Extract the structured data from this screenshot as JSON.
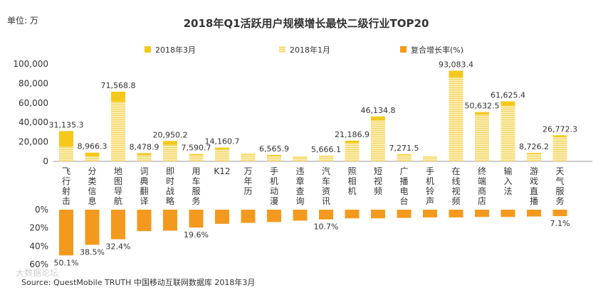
{
  "chart_data": {
    "type": "bar",
    "title": "2018年Q1活跃用户规模增长最快二级行业TOP20",
    "unit_label": "单位: 万",
    "legend": {
      "march": "2018年3月",
      "january": "2018年1月",
      "growth": "复合增长率(%)"
    },
    "y_ticks": [
      "100,000",
      "80,000",
      "60,000",
      "40,000",
      "20,000",
      "0"
    ],
    "growth_ticks": [
      "0%",
      "20%",
      "40%",
      "60%"
    ],
    "ylim": [
      0,
      100000
    ],
    "growth_lim": [
      0,
      60
    ],
    "categories": [
      "飞行射击",
      "分类信息",
      "地图导航",
      "词典翻译",
      "即时战略",
      "用车服务",
      "K12",
      "万年历",
      "手机动漫",
      "违章查询",
      "汽车资讯",
      "照相机",
      "短视频",
      "广播电台",
      "手机铃声",
      "在线视频",
      "终端商店",
      "输入法",
      "游戏直播",
      "天气服务"
    ],
    "series": [
      {
        "name": "2018年3月",
        "values": [
          31135.3,
          8966.3,
          71568.8,
          8478.9,
          20950.2,
          7590.7,
          14160.7,
          7800,
          6565.9,
          4800,
          5666.1,
          21186.9,
          46134.8,
          7271.5,
          5200,
          93083.4,
          50632.5,
          61625.4,
          8726.2,
          26772.3
        ]
      },
      {
        "name": "2018年1月",
        "values": [
          15000,
          5000,
          61000,
          6500,
          17000,
          6500,
          12500,
          7000,
          5500,
          4200,
          5000,
          19000,
          42000,
          6500,
          4800,
          86000,
          48000,
          57000,
          8000,
          25000
        ]
      },
      {
        "name": "复合增长率(%)",
        "values": [
          50.1,
          38.5,
          32.4,
          23.5,
          23.0,
          19.6,
          15.5,
          14.5,
          13.5,
          12.0,
          10.7,
          9.5,
          9.5,
          9.0,
          8.5,
          8.5,
          8.0,
          8.0,
          7.5,
          7.1
        ]
      }
    ],
    "value_labels": [
      "31,135.3",
      "8,966.3",
      "71,568.8",
      "8,478.9",
      "20,950.2",
      "7,590.7",
      "14,160.7",
      null,
      "6,565.9",
      null,
      "5,666.1",
      "21,186.9",
      "46,134.8",
      "7,271.5",
      null,
      "93,083.4",
      "50,632.5",
      "61,625.4",
      "8,726.2",
      "26,772.3"
    ],
    "growth_labels": [
      "50.1%",
      "38.5%",
      "32.4%",
      null,
      null,
      "19.6%",
      null,
      null,
      null,
      null,
      "10.7%",
      null,
      null,
      null,
      null,
      null,
      null,
      null,
      null,
      "7.1%"
    ],
    "source": "Source: QuestMobile TRUTH 中国移动互联网数据库 2018年3月",
    "watermark": "大数据论坛"
  },
  "colors": {
    "march": "#f5c81b",
    "january": "#f7e08a",
    "growth": "#f39a1e",
    "axis": "#999999"
  }
}
